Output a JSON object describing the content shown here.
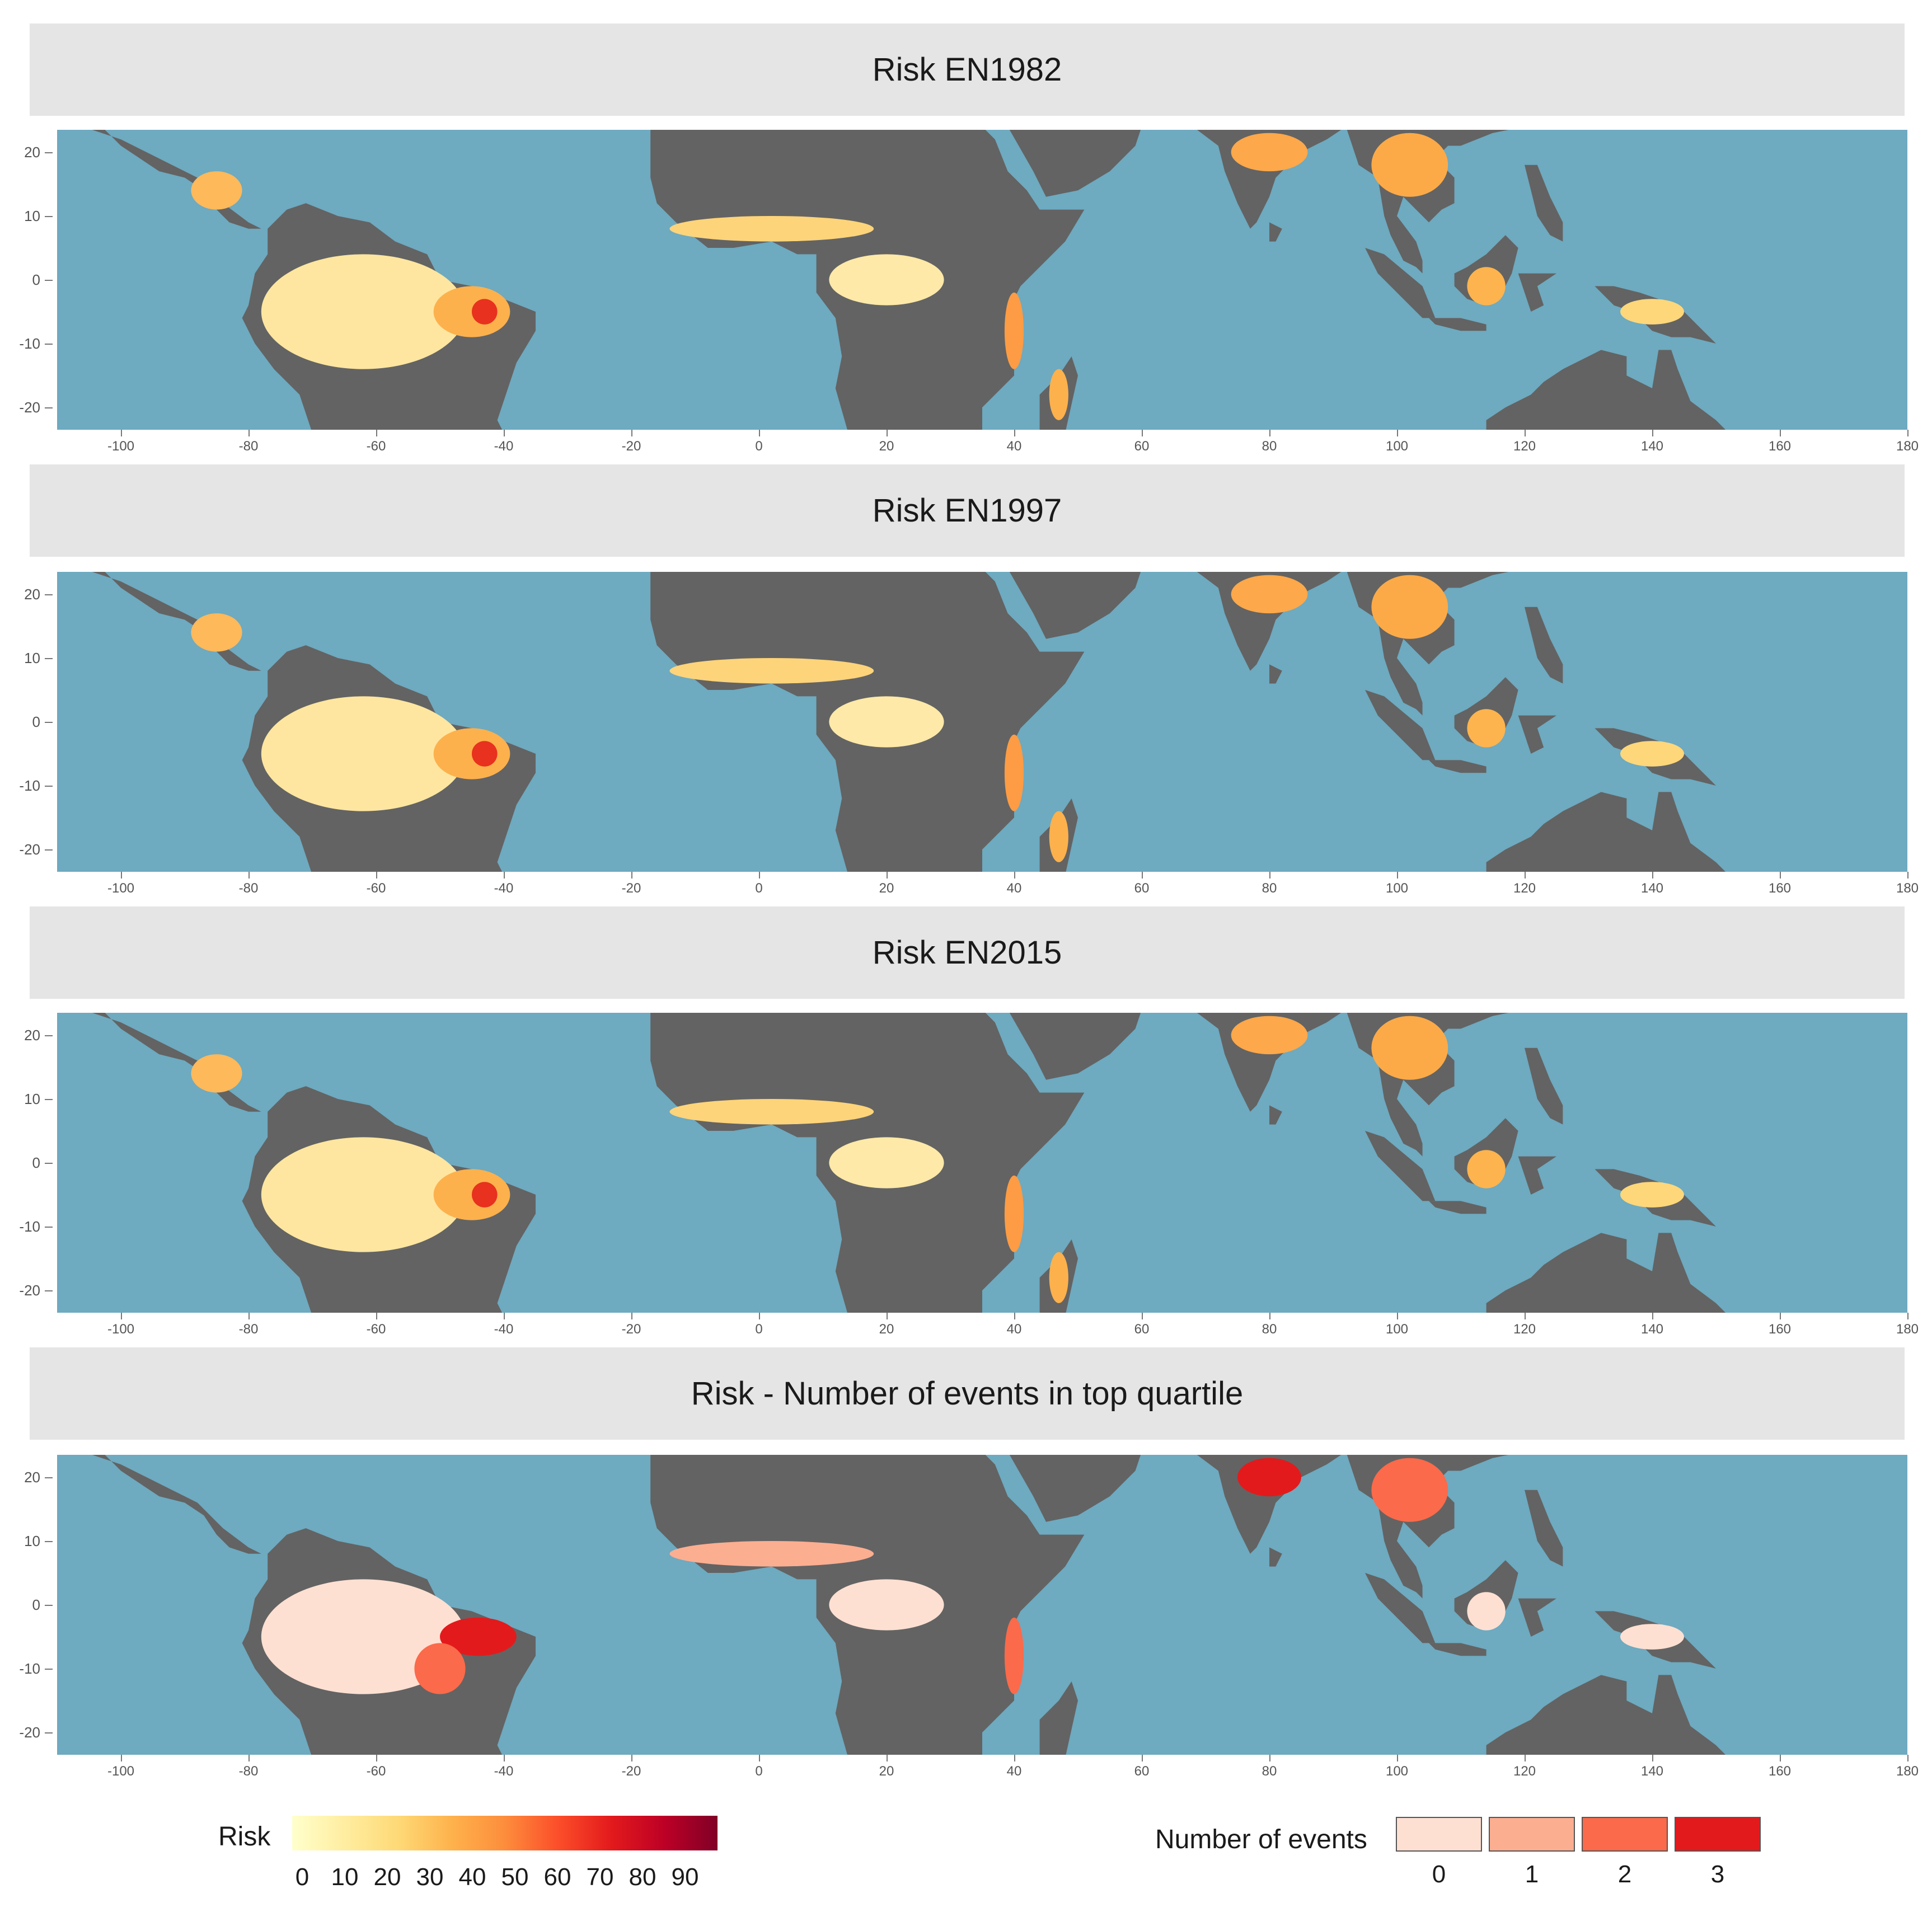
{
  "panels": [
    {
      "title": "Risk EN1982"
    },
    {
      "title": "Risk EN1997"
    },
    {
      "title": "Risk EN2015"
    },
    {
      "title": "Risk - Number of events in top quartile"
    }
  ],
  "axes": {
    "x_ticks": [
      "-100",
      "-80",
      "-60",
      "-40",
      "-20",
      "0",
      "20",
      "40",
      "60",
      "80",
      "100",
      "120",
      "140",
      "160",
      "180"
    ],
    "y_ticks": [
      "20",
      "10",
      "0",
      "-10",
      "-20"
    ]
  },
  "colors": {
    "ocean": "#6eaac0",
    "land": "#636363",
    "header_bg": "#e5e5e5"
  },
  "risk_legend": {
    "title": "Risk",
    "labels": [
      "0",
      "10",
      "20",
      "30",
      "40",
      "50",
      "60",
      "70",
      "80",
      "90"
    ],
    "gradient": [
      "#ffffcc",
      "#ffeda0",
      "#fed976",
      "#feb24c",
      "#fd8d3c",
      "#fc4e2a",
      "#e31a1c",
      "#bd0026",
      "#800026"
    ]
  },
  "events_legend": {
    "title": "Number of events",
    "items": [
      {
        "label": "0",
        "color": "#fee0d2"
      },
      {
        "label": "1",
        "color": "#fcae91"
      },
      {
        "label": "2",
        "color": "#fb6a4a"
      },
      {
        "label": "3",
        "color": "#e31a1c"
      }
    ]
  }
}
